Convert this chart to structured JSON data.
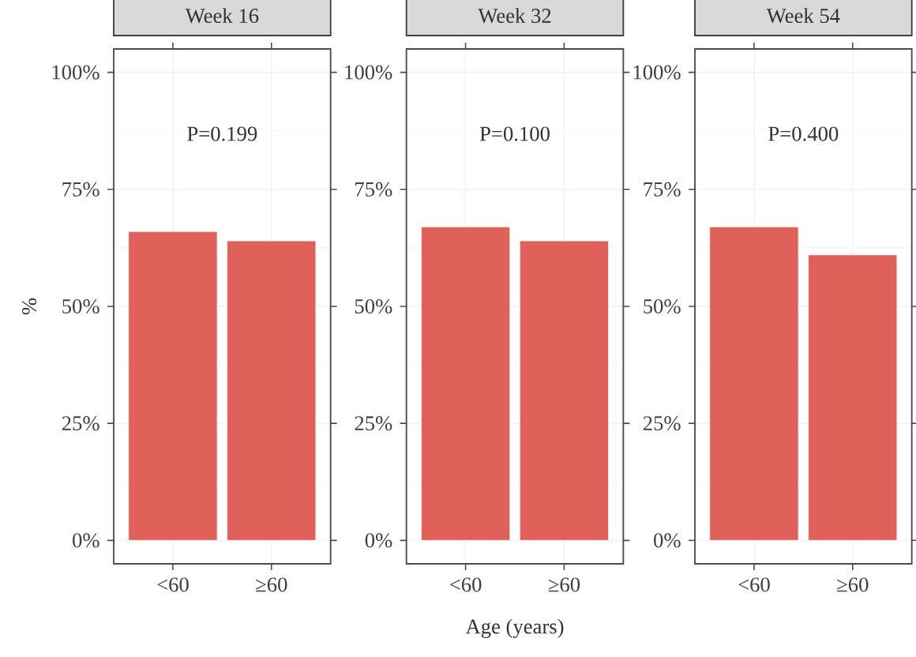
{
  "chart_data": [
    {
      "type": "bar",
      "title": "Week 16",
      "ylabel": "%",
      "categories": [
        "<60",
        "≥60"
      ],
      "values": [
        66,
        64
      ],
      "color": "#e0605a",
      "ylim": [
        -5,
        105
      ],
      "yticks": [
        {
          "value": 0,
          "label": "0%"
        },
        {
          "value": 25,
          "label": "25%"
        },
        {
          "value": 50,
          "label": "50%"
        },
        {
          "value": 75,
          "label": "75%"
        },
        {
          "value": 100,
          "label": "100%"
        }
      ],
      "grid": true,
      "annotations": [
        "P=0.199"
      ]
    },
    {
      "type": "bar",
      "title": "Week 32",
      "xlabel": "Age (years)",
      "categories": [
        "<60",
        "≥60"
      ],
      "values": [
        67,
        64
      ],
      "color": "#e0605a",
      "ylim": [
        -5,
        105
      ],
      "yticks": [
        {
          "value": 0,
          "label": "0%"
        },
        {
          "value": 25,
          "label": "25%"
        },
        {
          "value": 50,
          "label": "50%"
        },
        {
          "value": 75,
          "label": "75%"
        },
        {
          "value": 100,
          "label": "100%"
        }
      ],
      "grid": true,
      "annotations": [
        "P=0.100"
      ]
    },
    {
      "type": "bar",
      "title": "Week 54",
      "categories": [
        "<60",
        "≥60"
      ],
      "values": [
        67,
        61
      ],
      "color": "#e0605a",
      "ylim": [
        -5,
        105
      ],
      "yticks": [
        {
          "value": 0,
          "label": "0%"
        },
        {
          "value": 25,
          "label": "25%"
        },
        {
          "value": 50,
          "label": "50%"
        },
        {
          "value": 75,
          "label": "75%"
        },
        {
          "value": 100,
          "label": "100%"
        }
      ],
      "grid": true,
      "annotations": [
        "P=0.400"
      ]
    }
  ]
}
